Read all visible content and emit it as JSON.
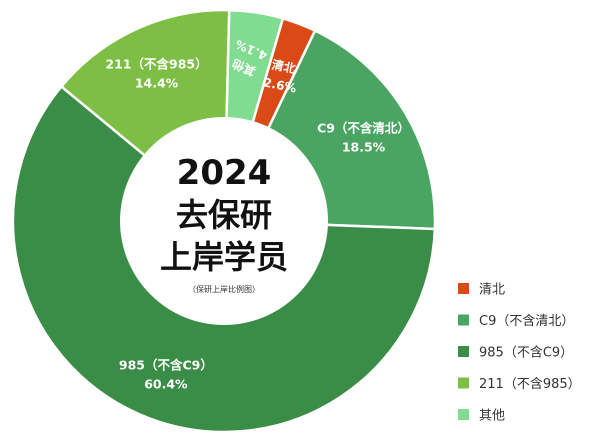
{
  "chart_data": {
    "type": "pie",
    "donut": true,
    "center": {
      "year": "2024",
      "line1": "去保研",
      "line2": "上岸学员",
      "note": "（保研上岸比例图）"
    },
    "slices": [
      {
        "name": "清北",
        "value": 2.6,
        "label": "2.6%",
        "color": "#d94a17"
      },
      {
        "name": "C9（不含清北）",
        "value": 18.5,
        "label": "18.5%",
        "color": "#4aa562"
      },
      {
        "name": "985（不含C9）",
        "value": 60.4,
        "label": "60.4%",
        "color": "#3a8d46"
      },
      {
        "name": "211（不含985）",
        "value": 14.4,
        "label": "14.4%",
        "color": "#7dbf45"
      },
      {
        "name": "其他",
        "value": 4.1,
        "label": "4.1%",
        "color": "#7fdc90"
      }
    ],
    "legend": {
      "position": "bottom-right",
      "items": [
        "清北",
        "C9（不含清北）",
        "985（不含C9）",
        "211（不含985）",
        "其他"
      ]
    }
  }
}
